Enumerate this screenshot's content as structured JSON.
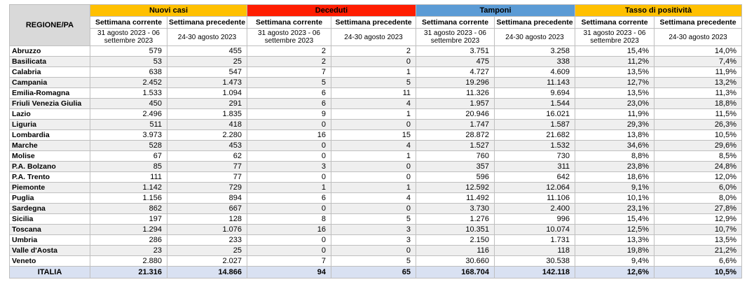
{
  "table": {
    "region_header": "REGIONE/PA",
    "groups": [
      {
        "label": "Nuovi casi",
        "color": "#FFC000"
      },
      {
        "label": "Deceduti",
        "color": "#FF1D00"
      },
      {
        "label": "Tamponi",
        "color": "#5B9BD5"
      },
      {
        "label": "Tasso di positività",
        "color": "#FFC000"
      }
    ],
    "subheaders": {
      "current": "Settimana corrente",
      "previous": "Settimana precedente"
    },
    "date_ranges": {
      "current": "31 agosto 2023 - 06 settembre 2023",
      "previous": "24-30 agosto 2023"
    },
    "rows": [
      {
        "region": "Abruzzo",
        "values": [
          "579",
          "455",
          "2",
          "2",
          "3.751",
          "3.258",
          "15,4%",
          "14,0%"
        ]
      },
      {
        "region": "Basilicata",
        "values": [
          "53",
          "25",
          "2",
          "0",
          "475",
          "338",
          "11,2%",
          "7,4%"
        ]
      },
      {
        "region": "Calabria",
        "values": [
          "638",
          "547",
          "7",
          "1",
          "4.727",
          "4.609",
          "13,5%",
          "11,9%"
        ]
      },
      {
        "region": "Campania",
        "values": [
          "2.452",
          "1.473",
          "5",
          "5",
          "19.296",
          "11.143",
          "12,7%",
          "13,2%"
        ]
      },
      {
        "region": "Emilia-Romagna",
        "values": [
          "1.533",
          "1.094",
          "6",
          "11",
          "11.326",
          "9.694",
          "13,5%",
          "11,3%"
        ]
      },
      {
        "region": "Friuli Venezia Giulia",
        "values": [
          "450",
          "291",
          "6",
          "4",
          "1.957",
          "1.544",
          "23,0%",
          "18,8%"
        ]
      },
      {
        "region": "Lazio",
        "values": [
          "2.496",
          "1.835",
          "9",
          "1",
          "20.946",
          "16.021",
          "11,9%",
          "11,5%"
        ]
      },
      {
        "region": "Liguria",
        "values": [
          "511",
          "418",
          "0",
          "0",
          "1.747",
          "1.587",
          "29,3%",
          "26,3%"
        ]
      },
      {
        "region": "Lombardia",
        "values": [
          "3.973",
          "2.280",
          "16",
          "15",
          "28.872",
          "21.682",
          "13,8%",
          "10,5%"
        ]
      },
      {
        "region": "Marche",
        "values": [
          "528",
          "453",
          "0",
          "4",
          "1.527",
          "1.532",
          "34,6%",
          "29,6%"
        ]
      },
      {
        "region": "Molise",
        "values": [
          "67",
          "62",
          "0",
          "1",
          "760",
          "730",
          "8,8%",
          "8,5%"
        ]
      },
      {
        "region": "P.A. Bolzano",
        "values": [
          "85",
          "77",
          "3",
          "0",
          "357",
          "311",
          "23,8%",
          "24,8%"
        ]
      },
      {
        "region": "P.A. Trento",
        "values": [
          "111",
          "77",
          "0",
          "0",
          "596",
          "642",
          "18,6%",
          "12,0%"
        ]
      },
      {
        "region": "Piemonte",
        "values": [
          "1.142",
          "729",
          "1",
          "1",
          "12.592",
          "12.064",
          "9,1%",
          "6,0%"
        ]
      },
      {
        "region": "Puglia",
        "values": [
          "1.156",
          "894",
          "6",
          "4",
          "11.492",
          "11.106",
          "10,1%",
          "8,0%"
        ]
      },
      {
        "region": "Sardegna",
        "values": [
          "862",
          "667",
          "0",
          "0",
          "3.730",
          "2.400",
          "23,1%",
          "27,8%"
        ]
      },
      {
        "region": "Sicilia",
        "values": [
          "197",
          "128",
          "8",
          "5",
          "1.276",
          "996",
          "15,4%",
          "12,9%"
        ]
      },
      {
        "region": "Toscana",
        "values": [
          "1.294",
          "1.076",
          "16",
          "3",
          "10.351",
          "10.074",
          "12,5%",
          "10,7%"
        ]
      },
      {
        "region": "Umbria",
        "values": [
          "286",
          "233",
          "0",
          "3",
          "2.150",
          "1.731",
          "13,3%",
          "13,5%"
        ]
      },
      {
        "region": "Valle d'Aosta",
        "values": [
          "23",
          "25",
          "0",
          "0",
          "116",
          "118",
          "19,8%",
          "21,2%"
        ]
      },
      {
        "region": "Veneto",
        "values": [
          "2.880",
          "2.027",
          "7",
          "5",
          "30.660",
          "30.538",
          "9,4%",
          "6,6%"
        ]
      }
    ],
    "total_row": {
      "region": "ITALIA",
      "values": [
        "21.316",
        "14.866",
        "94",
        "65",
        "168.704",
        "142.118",
        "12,6%",
        "10,5%"
      ]
    },
    "colors": {
      "region_header_bg": "#D9D9D9",
      "stripe_bg": "#EFEFEF",
      "total_row_bg": "#D9E1F2",
      "border": "#BFBFBF"
    }
  }
}
